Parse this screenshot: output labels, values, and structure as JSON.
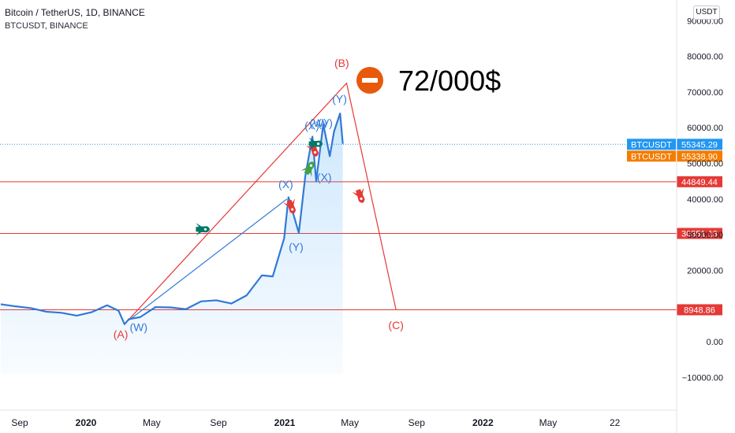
{
  "header": {
    "title": "Bitcoin / TetherUS, 1D, BINANCE",
    "symbol_line": "BTCUSDT, BINANCE",
    "currency": "USDT"
  },
  "annotation": {
    "text": "72/000$",
    "icon": "no-entry-icon",
    "icon_color": "#e8590c"
  },
  "chart_data": {
    "type": "line",
    "yaxis": {
      "ticks": [
        -10000,
        0,
        20000,
        30000,
        40000,
        50000,
        60000,
        70000,
        80000,
        90000
      ],
      "tick_labels": [
        "−10000.00",
        "0.00",
        "20000.00",
        "30000.00",
        "40000.00",
        "50000.00",
        "60000.00",
        "70000.00",
        "80000.00",
        "90000.00"
      ]
    },
    "xaxis": {
      "labels": [
        {
          "t": "2019-09-01",
          "text": "Sep",
          "bold": false
        },
        {
          "t": "2020-01-01",
          "text": "2020",
          "bold": true
        },
        {
          "t": "2020-05-01",
          "text": "May",
          "bold": false
        },
        {
          "t": "2020-09-01",
          "text": "Sep",
          "bold": false
        },
        {
          "t": "2021-01-01",
          "text": "2021",
          "bold": true
        },
        {
          "t": "2021-05-01",
          "text": "May",
          "bold": false
        },
        {
          "t": "2021-09-01",
          "text": "Sep",
          "bold": false
        },
        {
          "t": "2022-01-01",
          "text": "2022",
          "bold": true
        },
        {
          "t": "2022-05-01",
          "text": "May",
          "bold": false
        },
        {
          "t": "2022-09-01",
          "text": "22",
          "bold": false
        }
      ]
    },
    "price_series": {
      "color": "#3179d6",
      "points": [
        [
          "2019-07-28",
          10500
        ],
        [
          "2019-08-25",
          9900
        ],
        [
          "2019-09-22",
          9400
        ],
        [
          "2019-10-20",
          8400
        ],
        [
          "2019-11-17",
          8100
        ],
        [
          "2019-12-15",
          7300
        ],
        [
          "2020-01-12",
          8300
        ],
        [
          "2020-02-09",
          10200
        ],
        [
          "2020-03-01",
          8700
        ],
        [
          "2020-03-12",
          4900
        ],
        [
          "2020-03-20",
          6300
        ],
        [
          "2020-04-10",
          6900
        ],
        [
          "2020-05-08",
          9700
        ],
        [
          "2020-06-05",
          9600
        ],
        [
          "2020-07-03",
          9100
        ],
        [
          "2020-07-31",
          11300
        ],
        [
          "2020-08-28",
          11600
        ],
        [
          "2020-09-25",
          10700
        ],
        [
          "2020-10-23",
          13000
        ],
        [
          "2020-11-20",
          18600
        ],
        [
          "2020-12-10",
          18300
        ],
        [
          "2020-12-31",
          29000
        ],
        [
          "2021-01-08",
          40500
        ],
        [
          "2021-01-27",
          30500
        ],
        [
          "2021-02-08",
          46500
        ],
        [
          "2021-02-21",
          57500
        ],
        [
          "2021-02-28",
          45000
        ],
        [
          "2021-03-13",
          61000
        ],
        [
          "2021-03-25",
          52000
        ],
        [
          "2021-04-02",
          59000
        ],
        [
          "2021-04-13",
          64000
        ],
        [
          "2021-04-18",
          55500
        ]
      ]
    },
    "horizontal_levels": [
      {
        "value": 44849.44,
        "label": "44849.44",
        "color": "#e53935"
      },
      {
        "value": 30351.13,
        "label": "30351.13",
        "color": "#e53935"
      },
      {
        "value": 8948.86,
        "label": "8948.86",
        "color": "#e53935"
      }
    ],
    "last_price_tags": [
      {
        "name": "BTCUSDT",
        "value": 55345.29,
        "label": "55345.29",
        "color": "#2196f3"
      },
      {
        "name": "BTCUSDT",
        "value": 55338.9,
        "label": "55338.90",
        "color": "#f57c00"
      }
    ],
    "projection": {
      "color": "#e53935",
      "points": [
        [
          "2020-03-12",
          4900
        ],
        [
          "2021-04-25",
          72500
        ],
        [
          "2021-07-25",
          8948.86
        ]
      ]
    },
    "trend_line": {
      "color": "#3179d6",
      "points": [
        [
          "2020-03-20",
          6000
        ],
        [
          "2021-01-05",
          40000
        ]
      ]
    },
    "wave_labels": [
      {
        "text": "(A)",
        "t": "2020-03-05",
        "v": 1000,
        "color": "#e53935"
      },
      {
        "text": "(W)",
        "t": "2020-04-07",
        "v": 3000,
        "color": "#3179d6"
      },
      {
        "text": "(B)",
        "t": "2021-04-16",
        "v": 77000,
        "color": "#e53935"
      },
      {
        "text": "(C)",
        "t": "2021-07-25",
        "v": 3500,
        "color": "#e53935"
      },
      {
        "text": "(X)",
        "t": "2021-01-03",
        "v": 43000,
        "color": "#3179d6"
      },
      {
        "text": "(Y)",
        "t": "2021-01-22",
        "v": 25500,
        "color": "#3179d6"
      },
      {
        "text": "(X)",
        "t": "2021-03-15",
        "v": 45000,
        "color": "#3179d6"
      },
      {
        "text": "(Y)",
        "t": "2021-04-12",
        "v": 67000,
        "color": "#3179d6"
      },
      {
        "text": "(X)",
        "t": "2021-02-20",
        "v": 59500,
        "color": "#3179d6"
      },
      {
        "text": "(W)",
        "t": "2021-03-04",
        "v": 60300,
        "color": "#3179d6"
      },
      {
        "text": "(V)",
        "t": "2021-03-17",
        "v": 60300,
        "color": "#3179d6"
      }
    ],
    "rocket_markers": [
      {
        "t": "2020-08-05",
        "v": 31500,
        "color": "#00796b",
        "dir": "right"
      },
      {
        "t": "2021-01-14",
        "v": 37500,
        "color": "#e53935",
        "dir": "down"
      },
      {
        "t": "2021-02-17",
        "v": 49000,
        "color": "#43a047",
        "dir": "up"
      },
      {
        "t": "2021-02-25",
        "v": 53500,
        "color": "#e53935",
        "dir": "down"
      },
      {
        "t": "2021-03-01",
        "v": 55500,
        "color": "#00796b",
        "dir": "right"
      },
      {
        "t": "2021-05-21",
        "v": 40500,
        "color": "#e53935",
        "dir": "down"
      }
    ]
  }
}
